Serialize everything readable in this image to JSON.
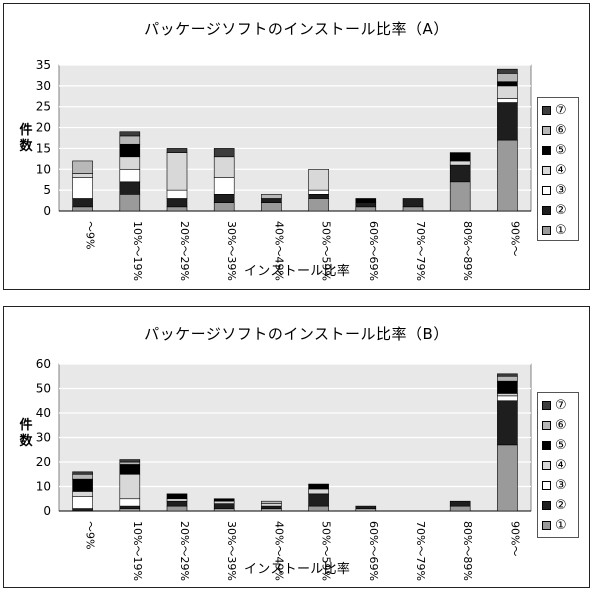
{
  "chart_data": [
    {
      "type": "bar",
      "stacked": true,
      "title": "パッケージソフトのインストール比率（A）",
      "xlabel": "インストール比率",
      "ylabel": "件数",
      "ylim": [
        0,
        35
      ],
      "yticks": [
        0,
        5,
        10,
        15,
        20,
        25,
        30,
        35
      ],
      "grid": true,
      "legend_position": "right",
      "categories": [
        "～9%",
        "10%～19%",
        "20%～29%",
        "30%～39%",
        "40%～49%",
        "50%～59%",
        "60%～69%",
        "70%～79%",
        "80%～89%",
        "90%～"
      ],
      "series": [
        {
          "name": "①",
          "values": [
            1,
            4,
            1,
            2,
            2,
            3,
            1,
            1,
            7,
            17
          ]
        },
        {
          "name": "②",
          "values": [
            2,
            3,
            2,
            2,
            1,
            1,
            1,
            2,
            4,
            9
          ]
        },
        {
          "name": "③",
          "values": [
            5,
            3,
            2,
            4,
            0,
            1,
            0,
            0,
            0,
            1
          ]
        },
        {
          "name": "④",
          "values": [
            1,
            3,
            9,
            5,
            0,
            5,
            0,
            0,
            1,
            3
          ]
        },
        {
          "name": "⑤",
          "values": [
            0,
            3,
            0,
            0,
            0,
            0,
            1,
            0,
            2,
            1
          ]
        },
        {
          "name": "⑥",
          "values": [
            3,
            2,
            0,
            0,
            1,
            0,
            0,
            0,
            0,
            2
          ]
        },
        {
          "name": "⑦",
          "values": [
            0,
            1,
            1,
            2,
            0,
            0,
            0,
            0,
            0,
            1
          ]
        }
      ]
    },
    {
      "type": "bar",
      "stacked": true,
      "title": "パッケージソフトのインストール比率（B）",
      "xlabel": "インストール比率",
      "ylabel": "件数",
      "ylim": [
        0,
        60
      ],
      "yticks": [
        0,
        10,
        20,
        30,
        40,
        50,
        60
      ],
      "grid": true,
      "legend_position": "right",
      "categories": [
        "～9%",
        "10%～19%",
        "20%～29%",
        "30%～39%",
        "40%～49%",
        "50%～59%",
        "60%～69%",
        "70%～79%",
        "80%～89%",
        "90%～"
      ],
      "series": [
        {
          "name": "①",
          "values": [
            0,
            1,
            2,
            1,
            1,
            2,
            1,
            0,
            2,
            27
          ]
        },
        {
          "name": "②",
          "values": [
            1,
            1,
            2,
            2,
            1,
            5,
            1,
            0,
            2,
            18
          ]
        },
        {
          "name": "③",
          "values": [
            5,
            3,
            0,
            0,
            0,
            0,
            0,
            0,
            0,
            2
          ]
        },
        {
          "name": "④",
          "values": [
            2,
            10,
            1,
            1,
            1,
            2,
            0,
            0,
            0,
            1
          ]
        },
        {
          "name": "⑤",
          "values": [
            5,
            4,
            2,
            1,
            0,
            2,
            0,
            0,
            0,
            5
          ]
        },
        {
          "name": "⑥",
          "values": [
            2,
            1,
            0,
            0,
            1,
            0,
            0,
            0,
            0,
            2
          ]
        },
        {
          "name": "⑦",
          "values": [
            1,
            1,
            0,
            0,
            0,
            0,
            0,
            0,
            0,
            1
          ]
        }
      ]
    }
  ],
  "styles": {
    "series_fills": [
      "#9a9a9a",
      "#1e1e1e",
      "#ffffff",
      "#d8d8d8",
      "#000000",
      "#b8b8b8",
      "#3c3c3c"
    ],
    "plot_background": "#e8e8e8",
    "grid_color": "#ffffff"
  }
}
